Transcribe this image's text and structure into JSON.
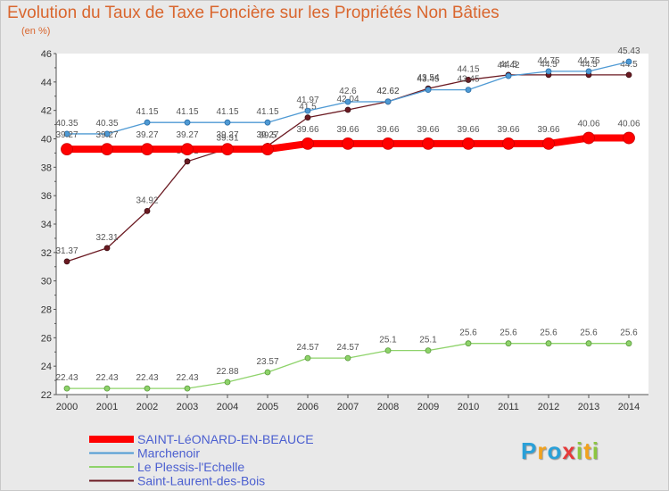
{
  "chart_data": {
    "type": "line",
    "title": "Evolution du Taux de Taxe Foncière sur les Propriétés Non Bâties",
    "subtitle": "(en %)",
    "x": [
      "2000",
      "2001",
      "2002",
      "2003",
      "2004",
      "2005",
      "2006",
      "2007",
      "2008",
      "2009",
      "2010",
      "2011",
      "2012",
      "2013",
      "2014"
    ],
    "ylim": [
      22,
      46
    ],
    "yticks": [
      22,
      24,
      26,
      28,
      30,
      32,
      34,
      36,
      38,
      40,
      42,
      44,
      46
    ],
    "grid": false,
    "legend_position": "bottom",
    "series": [
      {
        "name": "SAINT-LéONARD-EN-BEAUCE",
        "color": "#ff0000",
        "values": [
          39.27,
          39.27,
          39.27,
          39.27,
          39.27,
          39.27,
          39.66,
          39.66,
          39.66,
          39.66,
          39.66,
          39.66,
          39.66,
          40.06,
          40.06
        ]
      },
      {
        "name": "Marchenoir",
        "color": "#4f9ad4",
        "values": [
          40.35,
          40.35,
          41.15,
          41.15,
          41.15,
          41.15,
          41.97,
          42.6,
          42.62,
          43.45,
          43.45,
          44.42,
          44.75,
          44.75,
          45.43
        ]
      },
      {
        "name": "Le Plessis-l'Echelle",
        "color": "#8ed36a",
        "values": [
          22.43,
          22.43,
          22.43,
          22.43,
          22.88,
          23.57,
          24.57,
          24.57,
          25.1,
          25.1,
          25.6,
          25.6,
          25.6,
          25.6,
          25.6
        ]
      },
      {
        "name": "Saint-Laurent-des-Bois",
        "color": "#6b1a22",
        "values": [
          31.37,
          32.31,
          34.92,
          38.41,
          39.31,
          39.5,
          41.5,
          42.04,
          42.62,
          43.54,
          44.15,
          44.5,
          44.5,
          44.5,
          44.5
        ]
      }
    ]
  },
  "logo": {
    "letters": [
      "P",
      "r",
      "o",
      "x",
      "i",
      "t",
      "i"
    ],
    "colors": [
      "#2aa0d8",
      "#f2a21e",
      "#2aa0d8",
      "#e63a3a",
      "#8cc63f",
      "#f2a21e",
      "#8cc63f"
    ]
  }
}
